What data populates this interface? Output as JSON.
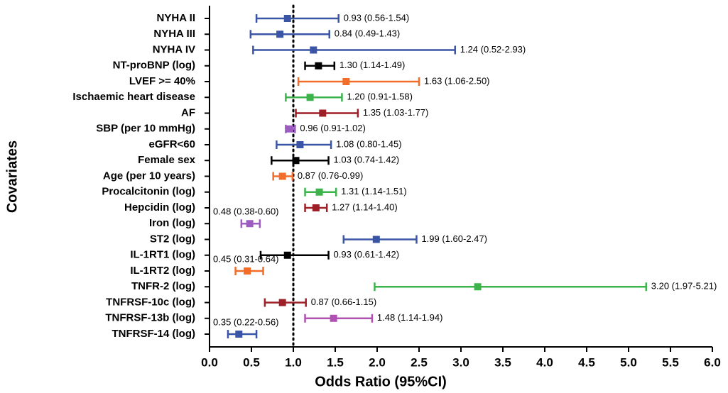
{
  "chart_data": {
    "type": "forest",
    "x_label": "Odds Ratio (95%CI)",
    "y_label": "Covariates",
    "categories": [
      "NYHA II",
      "NYHA III",
      "NYHA IV",
      "NT-proBNP (log)",
      "LVEF >= 40%",
      "Ischaemic heart disease",
      "AF",
      "SBP (per 10 mmHg)",
      "eGFR<60",
      "Female sex",
      "Age (per 10 years)",
      "Procalcitonin (log)",
      "Hepcidin (log)",
      "Iron (log)",
      "ST2 (log)",
      "IL-1RT1 (log)",
      "IL-1RT2 (log)",
      "TNFR-2 (log)",
      "TNFRSF-10c (log)",
      "TNFRSF-13b (log)",
      "TNFRSF-14 (log)"
    ],
    "values": [
      0.93,
      0.84,
      1.24,
      1.3,
      1.63,
      1.2,
      1.35,
      0.96,
      1.08,
      1.03,
      0.87,
      1.31,
      1.27,
      0.48,
      1.99,
      0.93,
      0.45,
      3.2,
      0.87,
      1.48,
      0.35
    ],
    "lower": [
      0.56,
      0.49,
      0.52,
      1.14,
      1.06,
      0.91,
      1.03,
      0.91,
      0.8,
      0.74,
      0.76,
      1.14,
      1.14,
      0.38,
      1.6,
      0.61,
      0.31,
      1.97,
      0.66,
      1.14,
      0.22
    ],
    "upper": [
      1.54,
      1.43,
      2.93,
      1.49,
      2.5,
      1.58,
      1.77,
      1.02,
      1.45,
      1.42,
      0.99,
      1.51,
      1.4,
      0.6,
      2.47,
      1.42,
      0.64,
      5.21,
      1.15,
      1.94,
      0.56
    ],
    "value_labels": [
      "0.93 (0.56-1.54)",
      "0.84 (0.49-1.43)",
      "1.24 (0.52-2.93)",
      "1.30 (1.14-1.49)",
      "1.63 (1.06-2.50)",
      "1.20 (0.91-1.58)",
      "1.35 (1.03-1.77)",
      "0.96 (0.91-1.02)",
      "1.08 (0.80-1.45)",
      "1.03 (0.74-1.42)",
      "0.87 (0.76-0.99)",
      "1.31 (1.14-1.51)",
      "1.27 (1.14-1.40)",
      "0.48 (0.38-0.60)",
      "1.99 (1.60-2.47)",
      "0.93 (0.61-1.42)",
      "0.45 (0.31-0.64)",
      "3.20 (1.97-5.21)",
      "0.87 (0.66-1.15)",
      "1.48 (1.14-1.94)",
      "0.35 (0.22-0.56)"
    ],
    "colors": [
      "#3a55a6",
      "#3a55a6",
      "#3a55a6",
      "#000000",
      "#f26c2a",
      "#3cb44b",
      "#9e1f27",
      "#9d5cc0",
      "#3a55a6",
      "#000000",
      "#f26c2a",
      "#3cb44b",
      "#9e1f27",
      "#9d5cc0",
      "#3a55a6",
      "#000000",
      "#f26c2a",
      "#3cb44b",
      "#9e1f27",
      "#b14fb3",
      "#3a55a6"
    ],
    "reference_line": 1,
    "xlim": [
      0,
      6
    ],
    "xticks": [
      {
        "value": 0,
        "label": "0.0"
      },
      0.5,
      {
        "value": 1,
        "label": "1.0"
      },
      1.5,
      {
        "value": 2,
        "label": "2.0"
      },
      2.5,
      {
        "value": 3,
        "label": "3.0"
      },
      3.5,
      {
        "value": 4,
        "label": "4.0"
      },
      4.5,
      {
        "value": 5,
        "label": "5.0"
      },
      5.5,
      {
        "value": 6,
        "label": "6.0"
      }
    ]
  }
}
